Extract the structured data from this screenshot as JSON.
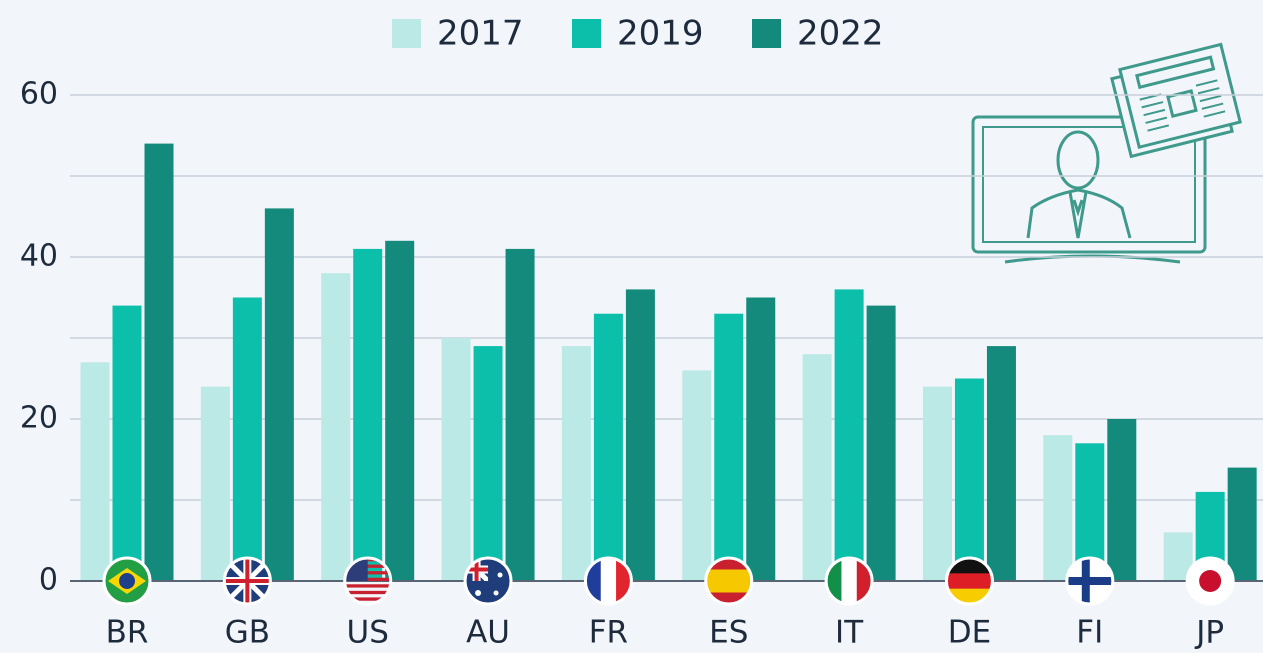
{
  "chart_data": {
    "type": "bar",
    "categories": [
      "BR",
      "GB",
      "US",
      "AU",
      "FR",
      "ES",
      "IT",
      "DE",
      "FI",
      "JP"
    ],
    "series": [
      {
        "name": "2017",
        "color": "#bbe9e5",
        "values": [
          27,
          24,
          38,
          30,
          29,
          26,
          28,
          24,
          18,
          6
        ]
      },
      {
        "name": "2019",
        "color": "#0cbfaa",
        "values": [
          34,
          35,
          41,
          29,
          33,
          33,
          36,
          25,
          17,
          11
        ]
      },
      {
        "name": "2022",
        "color": "#138a7b",
        "values": [
          54,
          46,
          42,
          41,
          36,
          35,
          34,
          29,
          20,
          14
        ]
      }
    ],
    "ylim": [
      0,
      60
    ],
    "yticks": [
      0,
      20,
      40,
      60
    ],
    "ygrid": [
      0,
      10,
      20,
      30,
      40,
      50,
      60
    ],
    "grid": true,
    "legend": "top"
  }
}
